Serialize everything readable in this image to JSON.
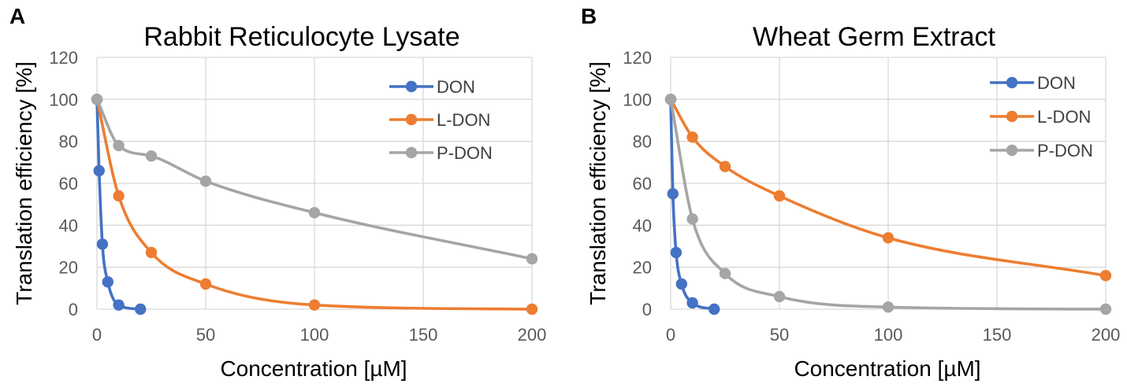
{
  "chart_data": [
    {
      "panel_label": "A",
      "type": "line",
      "title": "Rabbit Reticulocyte Lysate",
      "xlabel": "Concentration [µM]",
      "ylabel": "Translation efficiency [%]",
      "xlim": [
        0,
        200
      ],
      "ylim": [
        0,
        120
      ],
      "xticks": [
        "0",
        "50",
        "100",
        "150",
        "200"
      ],
      "yticks": [
        "0",
        "20",
        "40",
        "60",
        "80",
        "100",
        "120"
      ],
      "grid": true,
      "legend_position": "top-right",
      "series": [
        {
          "name": "DON",
          "color": "#4472c4",
          "x": [
            0,
            1,
            2.5,
            5,
            10,
            20
          ],
          "y": [
            100,
            66,
            31,
            13,
            2,
            0
          ]
        },
        {
          "name": "L-DON",
          "color": "#ed7d31",
          "x": [
            0,
            10,
            25,
            50,
            100,
            200
          ],
          "y": [
            100,
            54,
            27,
            12,
            2,
            0
          ]
        },
        {
          "name": "P-DON",
          "color": "#a5a5a5",
          "x": [
            0,
            10,
            25,
            50,
            100,
            200
          ],
          "y": [
            100,
            78,
            73,
            61,
            46,
            24
          ]
        }
      ]
    },
    {
      "panel_label": "B",
      "type": "line",
      "title": "Wheat Germ Extract",
      "xlabel": "Concentration [µM]",
      "ylabel": "Translation efficiency [%]",
      "xlim": [
        0,
        200
      ],
      "ylim": [
        0,
        120
      ],
      "xticks": [
        "0",
        "50",
        "100",
        "150",
        "200"
      ],
      "yticks": [
        "0",
        "20",
        "40",
        "60",
        "80",
        "100",
        "120"
      ],
      "grid": true,
      "legend_position": "top-right",
      "series": [
        {
          "name": "DON",
          "color": "#4472c4",
          "x": [
            0,
            1,
            2.5,
            5,
            10,
            20
          ],
          "y": [
            100,
            55,
            27,
            12,
            3,
            0
          ]
        },
        {
          "name": "L-DON",
          "color": "#ed7d31",
          "x": [
            0,
            10,
            25,
            50,
            100,
            200
          ],
          "y": [
            100,
            82,
            68,
            54,
            34,
            16
          ]
        },
        {
          "name": "P-DON",
          "color": "#a5a5a5",
          "x": [
            0,
            10,
            25,
            50,
            100,
            200
          ],
          "y": [
            100,
            43,
            17,
            6,
            1,
            0
          ]
        }
      ]
    }
  ]
}
